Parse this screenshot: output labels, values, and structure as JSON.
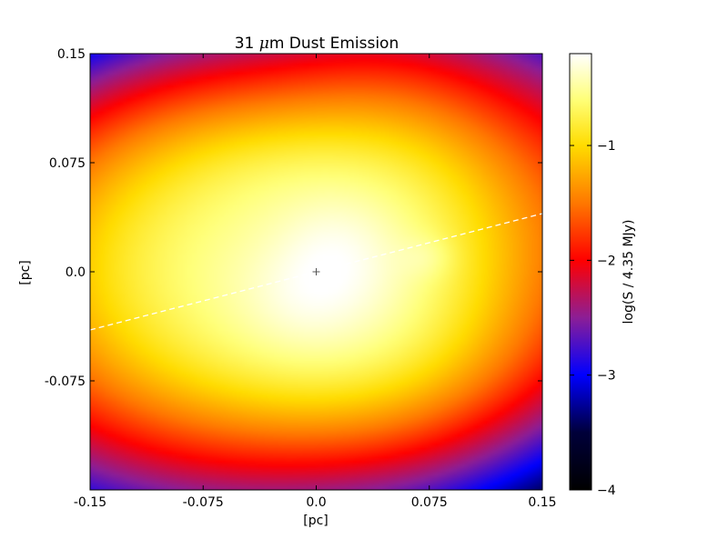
{
  "chart_data": {
    "type": "heatmap",
    "title_prefix": "31 ",
    "title_mu": "μ",
    "title_suffix": "m Dust Emission",
    "xlabel": "[pc]",
    "ylabel": "[pc]",
    "xlim": [
      -0.15,
      0.15
    ],
    "ylim": [
      -0.15,
      0.15
    ],
    "xticks": [
      -0.15,
      -0.075,
      0.0,
      0.075,
      0.15
    ],
    "xtick_labels": [
      "-0.15",
      "-0.075",
      "0.0",
      "0.075",
      "0.15"
    ],
    "yticks": [
      -0.075,
      0.0,
      0.075,
      0.15
    ],
    "ytick_labels": [
      "-0.075",
      "0.0",
      "0.075",
      "0.15"
    ],
    "colorbar": {
      "label": "log(S / 4.35 MJy)",
      "range": [
        -4,
        -0.2
      ],
      "ticks": [
        -4,
        -3,
        -2,
        -1
      ],
      "tick_labels": [
        "−4",
        "−3",
        "−2",
        "−1"
      ],
      "colormap": "gist_heat_blue",
      "stops": [
        {
          "v": -4.0,
          "color": "#000000"
        },
        {
          "v": -3.5,
          "color": "#00003a"
        },
        {
          "v": -3.0,
          "color": "#0000ff"
        },
        {
          "v": -2.5,
          "color": "#8c1e96"
        },
        {
          "v": -2.0,
          "color": "#ff0000"
        },
        {
          "v": -1.5,
          "color": "#ff7800"
        },
        {
          "v": -1.0,
          "color": "#ffdc00"
        },
        {
          "v": -0.6,
          "color": "#ffff78"
        },
        {
          "v": -0.2,
          "color": "#ffffff"
        }
      ]
    },
    "center_marker": {
      "x": 0.0,
      "y": 0.0,
      "symbol": "+"
    },
    "dashed_line": {
      "x1": -0.15,
      "y1": -0.04,
      "x2": 0.15,
      "y2": 0.04,
      "color": "#ffffff"
    },
    "emission_model": {
      "floor": -4.0,
      "background": -4.0,
      "components": [
        {
          "x": -0.005,
          "y": 0.005,
          "sx": 0.085,
          "sy": 0.055,
          "amp": 1.25,
          "rot": 0.15
        },
        {
          "x": -0.075,
          "y": 0.012,
          "sx": 0.055,
          "sy": 0.045,
          "amp": 0.85,
          "rot": 0.0
        },
        {
          "x": 0.045,
          "y": 0.012,
          "sx": 0.04,
          "sy": 0.05,
          "amp": 0.65,
          "rot": 0.0
        },
        {
          "x": -0.005,
          "y": -0.045,
          "sx": 0.06,
          "sy": 0.03,
          "amp": 0.7,
          "rot": 0.0
        },
        {
          "x": -0.01,
          "y": 0.06,
          "sx": 0.05,
          "sy": 0.025,
          "amp": 0.55,
          "rot": 0.0
        },
        {
          "x": 0.01,
          "y": -0.005,
          "sx": 0.04,
          "sy": 0.035,
          "amp": 1.4,
          "rot": 0.3
        },
        {
          "x": 0.012,
          "y": 0.012,
          "sx": 0.022,
          "sy": 0.022,
          "amp": 0.9,
          "rot": 0.0
        },
        {
          "x": -0.008,
          "y": -0.015,
          "sx": 0.022,
          "sy": 0.02,
          "amp": 0.6,
          "rot": 0.0
        },
        {
          "x": 0.072,
          "y": 0.01,
          "sx": 0.012,
          "sy": 0.01,
          "amp": 0.6,
          "rot": 0.0
        }
      ]
    }
  }
}
